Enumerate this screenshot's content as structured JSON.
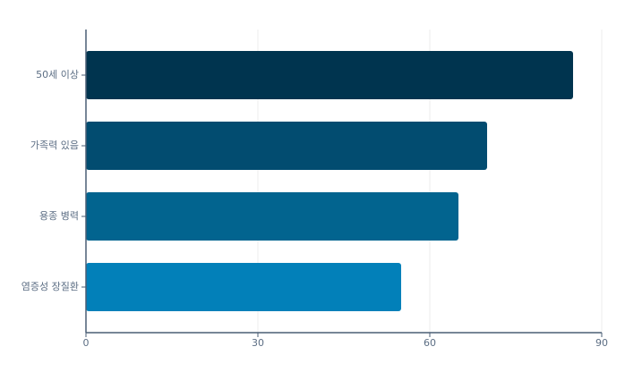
{
  "chart_data": {
    "type": "hbar",
    "categories": [
      "50세 이상",
      "가족력 있음",
      "용종 병력",
      "염증성 장질환"
    ],
    "values": [
      85,
      70,
      65,
      55
    ],
    "colors": [
      "#00344f",
      "#024c70",
      "#02648f",
      "#0280b9"
    ],
    "xlim": [
      0,
      90
    ],
    "xticks": [
      0,
      30,
      60,
      90
    ],
    "grid": true
  }
}
